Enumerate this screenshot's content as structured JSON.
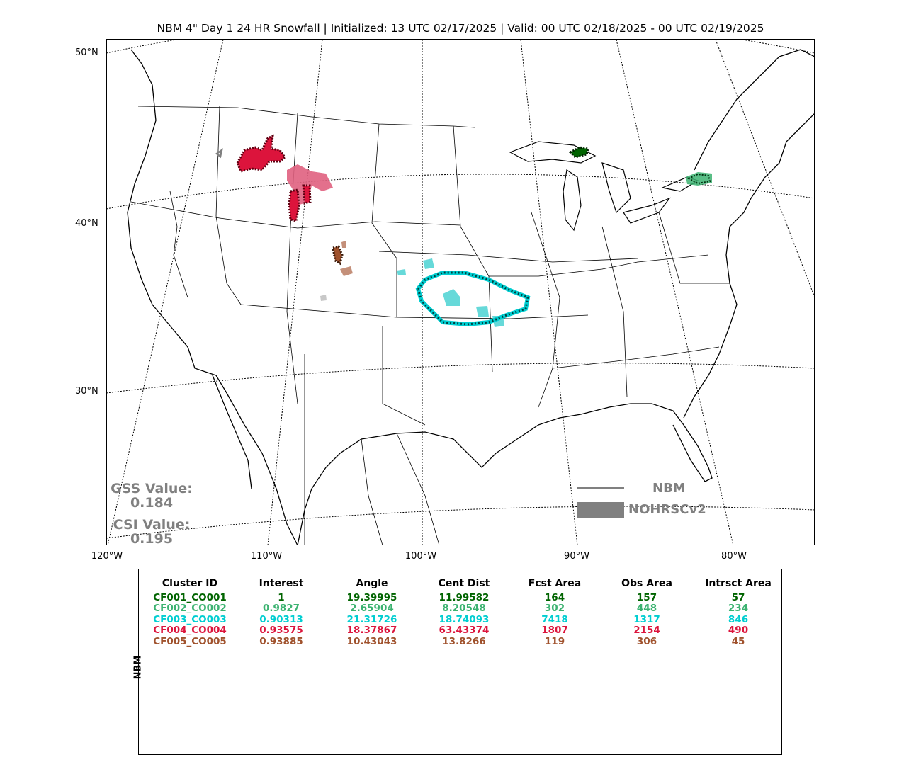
{
  "title": "NBM 4\" Day 1 24 HR Snowfall | Initialized: 13 UTC 02/17/2025 | Valid: 00 UTC 02/18/2025 - 00 UTC 02/19/2025",
  "lat_labels": [
    "50°N",
    "40°N",
    "30°N"
  ],
  "lon_labels": [
    "120°W",
    "110°W",
    "100°W",
    "90°W",
    "80°W"
  ],
  "scores": {
    "gss_label": "GSS Value:",
    "gss_value": "0.184",
    "csi_label": "CSI Value:",
    "csi_value": "0.195"
  },
  "legend": {
    "forecast_label": "NBM",
    "observed_label": "NOHRSCv2",
    "color": "#808080"
  },
  "table": {
    "side_label": "NBM",
    "headers": [
      "Cluster ID",
      "Interest",
      "Angle",
      "Cent Dist",
      "Fcst Area",
      "Obs Area",
      "Intrsct Area"
    ],
    "rows": [
      {
        "color": "#006400",
        "cells": [
          "CF001_CO001",
          "1",
          "19.39995",
          "11.99582",
          "164",
          "157",
          "57"
        ]
      },
      {
        "color": "#3cb371",
        "cells": [
          "CF002_CO002",
          "0.9827",
          "2.65904",
          "8.20548",
          "302",
          "448",
          "234"
        ]
      },
      {
        "color": "#00ced1",
        "cells": [
          "CF003_CO003",
          "0.90313",
          "21.31726",
          "18.74093",
          "7418",
          "1317",
          "846"
        ]
      },
      {
        "color": "#dc143c",
        "cells": [
          "CF004_CO004",
          "0.93575",
          "18.37867",
          "63.43374",
          "1807",
          "2154",
          "490"
        ]
      },
      {
        "color": "#a0522d",
        "cells": [
          "CF005_CO005",
          "0.93885",
          "10.43043",
          "13.8266",
          "119",
          "306",
          "45"
        ]
      }
    ]
  },
  "clusters": {
    "c1_color": "#006400",
    "c2_color": "#3cb371",
    "c3_color": "#00ced1",
    "c4_color": "#dc143c",
    "c5_color": "#a0522d",
    "unmatched_color": "#c8c8c8"
  }
}
